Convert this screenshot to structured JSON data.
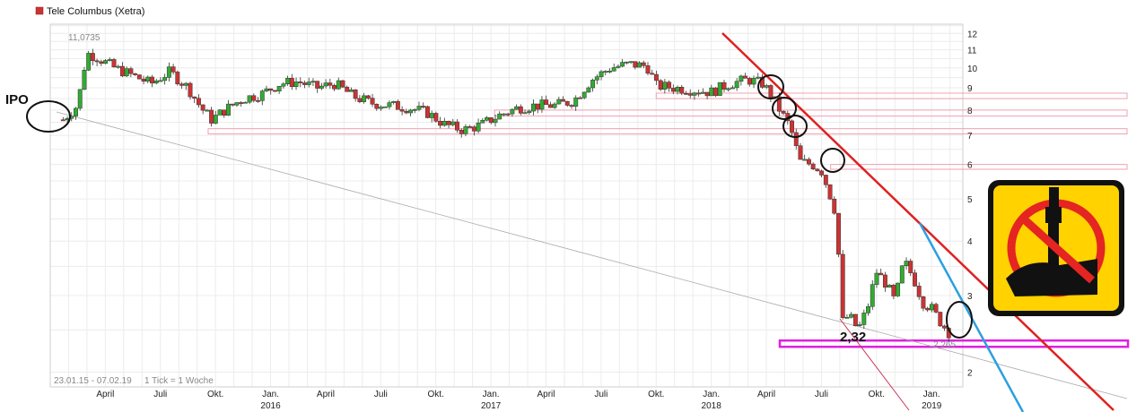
{
  "chart_data": {
    "type": "candlestick",
    "title": "Tele Columbus (Xetra)",
    "legend_color": "#cc3333",
    "up_color": "#33aa33",
    "down_color": "#cc3333",
    "y_scale": "log",
    "ylim": [
      1.85,
      12.6
    ],
    "y_ticks": [
      2,
      3,
      4,
      5,
      6,
      7,
      8,
      9,
      10,
      11,
      12
    ],
    "x_ticks": [
      {
        "label": "April",
        "month": 3
      },
      {
        "label": "Juli",
        "month": 6
      },
      {
        "label": "Okt.",
        "month": 9
      },
      {
        "label": "Jan.",
        "month": 12,
        "year": "2016"
      },
      {
        "label": "April",
        "month": 15
      },
      {
        "label": "Juli",
        "month": 18
      },
      {
        "label": "Okt.",
        "month": 21
      },
      {
        "label": "Jan.",
        "month": 24,
        "year": "2017"
      },
      {
        "label": "April",
        "month": 27
      },
      {
        "label": "Juli",
        "month": 30
      },
      {
        "label": "Okt.",
        "month": 33
      },
      {
        "label": "Jan.",
        "month": 36,
        "year": "2018"
      },
      {
        "label": "April",
        "month": 39
      },
      {
        "label": "Juli",
        "month": 42
      },
      {
        "label": "Okt.",
        "month": 45
      },
      {
        "label": "Jan.",
        "month": 48,
        "year": "2019"
      }
    ],
    "price_path": [
      [
        0.7,
        7.6
      ],
      [
        1.5,
        8.2
      ],
      [
        2.0,
        10.8
      ],
      [
        2.5,
        10.6
      ],
      [
        3.5,
        10.0
      ],
      [
        4.5,
        9.6
      ],
      [
        5.5,
        9.2
      ],
      [
        6.5,
        9.8
      ],
      [
        7.5,
        9.0
      ],
      [
        8.2,
        8.1
      ],
      [
        8.8,
        7.6
      ],
      [
        9.5,
        8.0
      ],
      [
        10.5,
        8.5
      ],
      [
        11.5,
        8.7
      ],
      [
        12.5,
        9.2
      ],
      [
        13.5,
        9.3
      ],
      [
        14.5,
        9.0
      ],
      [
        15.5,
        9.2
      ],
      [
        16.5,
        8.6
      ],
      [
        17.5,
        8.3
      ],
      [
        18.5,
        8.2
      ],
      [
        19.5,
        8.1
      ],
      [
        20.5,
        7.9
      ],
      [
        21.5,
        7.4
      ],
      [
        22.5,
        7.2
      ],
      [
        23.5,
        7.4
      ],
      [
        24.5,
        7.8
      ],
      [
        25.5,
        8.1
      ],
      [
        26.5,
        8.2
      ],
      [
        27.5,
        8.2
      ],
      [
        28.5,
        8.4
      ],
      [
        29.5,
        9.4
      ],
      [
        30.5,
        10.0
      ],
      [
        31.5,
        10.2
      ],
      [
        32.5,
        10.1
      ],
      [
        33.0,
        9.1
      ],
      [
        34.0,
        9.0
      ],
      [
        35.0,
        8.9
      ],
      [
        36.0,
        8.8
      ],
      [
        37.0,
        9.2
      ],
      [
        38.0,
        9.4
      ],
      [
        38.8,
        9.2
      ],
      [
        39.3,
        8.6
      ],
      [
        39.8,
        7.9
      ],
      [
        40.3,
        7.3
      ],
      [
        40.8,
        6.1
      ],
      [
        41.5,
        6.0
      ],
      [
        42.0,
        5.8
      ],
      [
        42.4,
        5.2
      ],
      [
        42.8,
        4.6
      ],
      [
        43.1,
        2.6
      ],
      [
        43.5,
        2.7
      ],
      [
        44.0,
        2.5
      ],
      [
        44.5,
        2.8
      ],
      [
        45.0,
        3.4
      ],
      [
        45.5,
        3.2
      ],
      [
        46.0,
        2.9
      ],
      [
        46.5,
        3.6
      ],
      [
        47.0,
        3.3
      ],
      [
        47.5,
        2.9
      ],
      [
        48.0,
        2.8
      ],
      [
        48.5,
        2.6
      ],
      [
        49.0,
        2.45
      ]
    ],
    "levels": [
      2.32
    ],
    "annotations": {
      "high_label": "11,0735",
      "low_label": "2,32",
      "last_label": "2,265",
      "period": "23.01.15 - 07.02.19",
      "tick_info": "1 Tick = 1 Woche",
      "ipo_label": "IPO"
    }
  }
}
